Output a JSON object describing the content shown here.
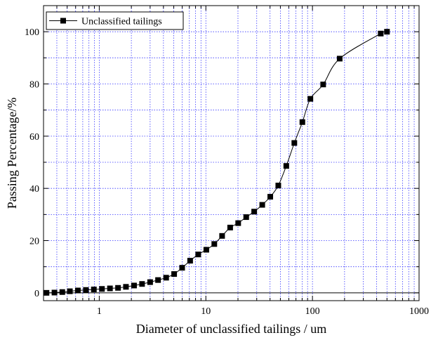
{
  "chart_data": {
    "type": "scatter",
    "title": "",
    "xlabel": "Diameter of unclassified tailings / um",
    "ylabel": "Passing Percentage/%",
    "xscale": "log",
    "xlim": [
      0.3,
      1000
    ],
    "ylim": [
      -3,
      110
    ],
    "grid": true,
    "legend": "top-left",
    "x_ticks": [
      {
        "value": 1,
        "label": "1"
      },
      {
        "value": 10,
        "label": "10"
      },
      {
        "value": 100,
        "label": "100"
      },
      {
        "value": 1000,
        "label": "1000"
      }
    ],
    "y_ticks": [
      {
        "value": 0,
        "label": "0"
      },
      {
        "value": 20,
        "label": "20"
      },
      {
        "value": 40,
        "label": "40"
      },
      {
        "value": 60,
        "label": "60"
      },
      {
        "value": 80,
        "label": "80"
      },
      {
        "value": 100,
        "label": "100"
      }
    ],
    "series": [
      {
        "name": "Unclassified tailings",
        "marker": "square",
        "line": true,
        "color": "#000000",
        "x": [
          0.32,
          0.38,
          0.45,
          0.53,
          0.63,
          0.75,
          0.89,
          1.06,
          1.26,
          1.5,
          1.78,
          2.12,
          2.52,
          3.0,
          3.56,
          4.24,
          5.04,
          5.99,
          7.12,
          8.48,
          10.1,
          12.0,
          14.2,
          16.9,
          20.1,
          23.9,
          28.4,
          33.8,
          40.2,
          47.8,
          56.8,
          67.6,
          80.4,
          95.6,
          126,
          180,
          437,
          500
        ],
        "y": [
          0.0,
          0.1,
          0.3,
          0.6,
          0.9,
          1.1,
          1.3,
          1.5,
          1.7,
          1.9,
          2.3,
          2.8,
          3.4,
          4.1,
          4.9,
          5.8,
          7.2,
          9.6,
          12.3,
          14.7,
          16.5,
          18.7,
          21.8,
          25.0,
          26.7,
          29.0,
          31.1,
          33.7,
          36.8,
          41.1,
          48.6,
          57.4,
          65.4,
          74.3,
          79.8,
          89.7,
          99.3,
          100.0
        ]
      }
    ]
  }
}
